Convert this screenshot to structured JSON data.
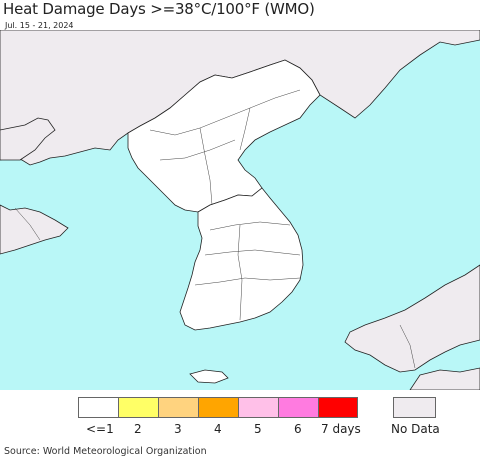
{
  "header": {
    "title": "Heat Damage Days >=38°C/100°F (WMO)",
    "date_range": "Jul. 15 - 21, 2024"
  },
  "map": {
    "colors": {
      "sea": "#b9f7f7",
      "land": "#ffffff",
      "no_data_land": "#efebef",
      "border": "#222222"
    }
  },
  "legend": {
    "items": [
      {
        "label": "<=1",
        "color": "#ffffff"
      },
      {
        "label": "2",
        "color": "#ffff66"
      },
      {
        "label": "3",
        "color": "#ffd37f"
      },
      {
        "label": "4",
        "color": "#ffa500"
      },
      {
        "label": "5",
        "color": "#ffc0e8"
      },
      {
        "label": "6",
        "color": "#ff7be0"
      },
      {
        "label": "7 days",
        "color": "#ff0000"
      }
    ],
    "no_data": {
      "label": "No Data",
      "color": "#efebef"
    }
  },
  "footer": {
    "source": "Source: World Meteorological Organization"
  }
}
